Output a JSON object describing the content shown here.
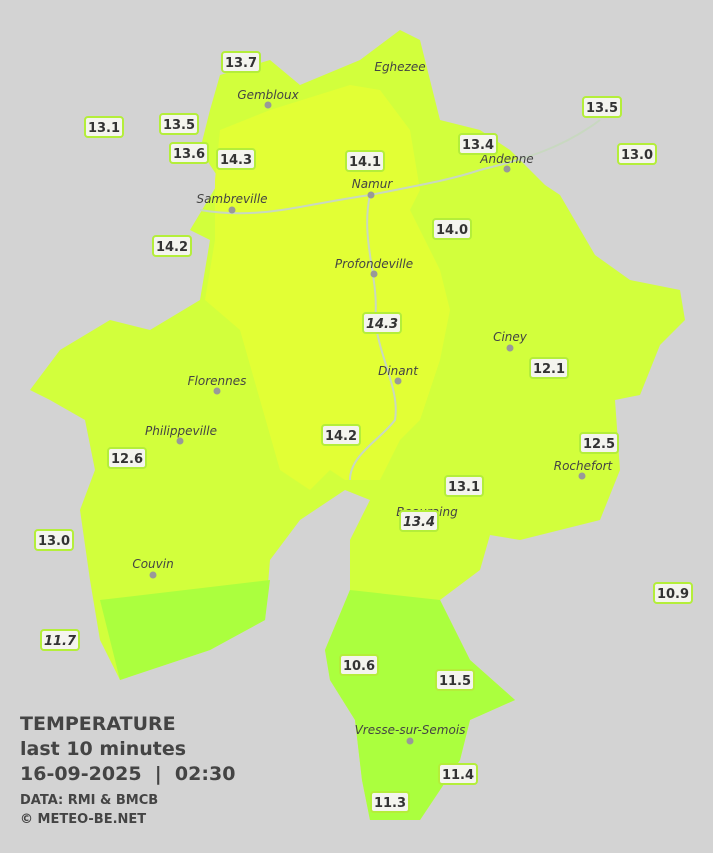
{
  "legend": {
    "title": "TEMPERATURE",
    "subtitle": "last 10 minutes",
    "timestamp": "16-09-2025  |  02:30",
    "source": "DATA: RMI & BMCB",
    "copyright": "© METEO-BE.NET"
  },
  "cities": [
    "Eghezee",
    "Gembloux",
    "Andenne",
    "Namur",
    "Sambreville",
    "Profondeville",
    "Ciney",
    "Dinant",
    "Florennes",
    "Philippeville",
    "Rochefort",
    "Beauraing",
    "Couvin",
    "Vresse-sur-Semois"
  ],
  "stations": [
    {
      "value": 13.7,
      "italic": false
    },
    {
      "value": 13.1,
      "italic": false
    },
    {
      "value": 13.5,
      "italic": false
    },
    {
      "value": 13.6,
      "italic": false
    },
    {
      "value": 14.3,
      "italic": false
    },
    {
      "value": 14.1,
      "italic": false
    },
    {
      "value": 13.4,
      "italic": false
    },
    {
      "value": 13.5,
      "italic": false
    },
    {
      "value": 13.0,
      "label": "13.0",
      "italic": false
    },
    {
      "value": 14.2,
      "italic": false
    },
    {
      "value": 14.0,
      "label": "14.0",
      "italic": false
    },
    {
      "value": 14.3,
      "italic": true
    },
    {
      "value": 12.1,
      "italic": false
    },
    {
      "value": 12.6,
      "italic": false
    },
    {
      "value": 14.2,
      "italic": false
    },
    {
      "value": 12.5,
      "italic": false
    },
    {
      "value": 13.1,
      "italic": false
    },
    {
      "value": 13.4,
      "italic": true
    },
    {
      "value": 13.0,
      "label": "13.0",
      "italic": false
    },
    {
      "value": 10.9,
      "italic": false
    },
    {
      "value": 11.7,
      "italic": true
    },
    {
      "value": 10.6,
      "italic": false
    },
    {
      "value": 11.5,
      "italic": false
    },
    {
      "value": 11.4,
      "italic": false
    },
    {
      "value": 11.3,
      "italic": false
    }
  ]
}
